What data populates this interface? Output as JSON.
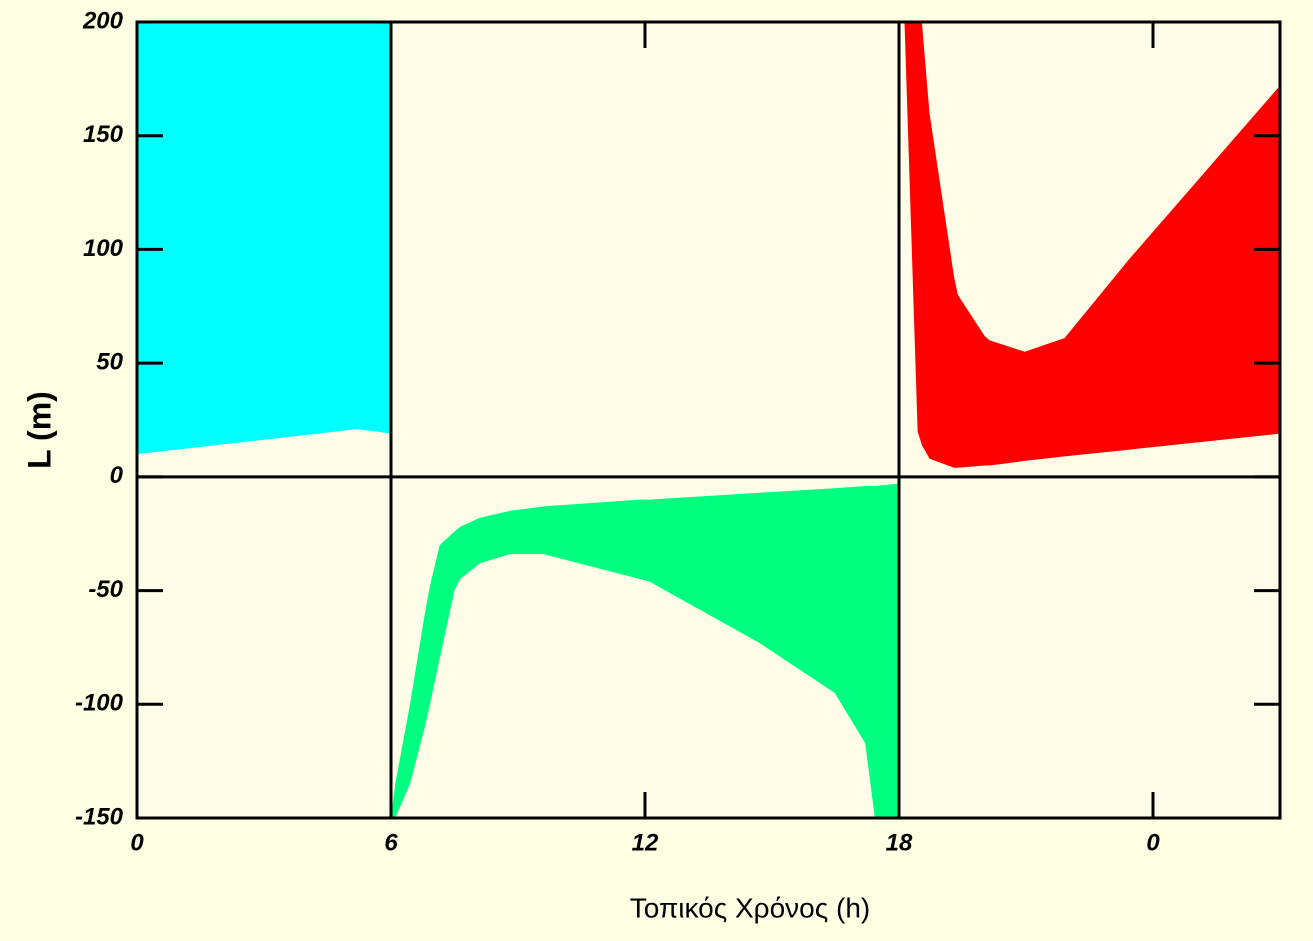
{
  "chart_data": {
    "type": "band",
    "x_label": "Τοπικός Χρόνος (h)",
    "y_label": "L (m)",
    "xlim": [
      0,
      27
    ],
    "ylim": [
      -150,
      200
    ],
    "xticks": [
      0,
      6,
      12,
      18,
      {
        "value": 24,
        "label": "0"
      }
    ],
    "yticks": [
      -150,
      -100,
      -50,
      0,
      50,
      100,
      150,
      200
    ],
    "vlines": [
      6,
      18
    ],
    "hlines": [
      0
    ],
    "series": [
      {
        "color": "#00ffff",
        "x": [
          0,
          5.2,
          6
        ],
        "lower": [
          10,
          21,
          19
        ],
        "upper": [
          200,
          200,
          200
        ]
      },
      {
        "color": "#ff0000",
        "x": [
          18.13,
          18.44,
          18.54,
          18.72,
          19.3,
          19.39,
          20.02,
          20.14,
          20.97,
          21.91,
          23.45,
          27
        ],
        "lower": [
          200,
          20,
          14,
          8,
          4,
          4,
          5,
          5,
          7,
          9,
          12,
          19
        ],
        "upper": [
          200,
          200,
          200,
          160,
          88,
          80,
          62,
          60,
          55,
          61,
          96,
          172
        ]
      },
      {
        "color": "#00ff80",
        "x": [
          6.0,
          6.1,
          6.45,
          6.8,
          6.92,
          7.15,
          7.5,
          7.63,
          8.1,
          8.8,
          9.6,
          11.9,
          12.1,
          14.7,
          16.48,
          17.2,
          17.43,
          18
        ],
        "lower": [
          -150,
          -150,
          -135,
          -110,
          -100,
          -80,
          -50,
          -45,
          -38,
          -34,
          -34,
          -45,
          -46,
          -73,
          -95,
          -117,
          -150,
          -150
        ],
        "upper": [
          -150,
          -135,
          -100,
          -60,
          -48,
          -30,
          -24,
          -22,
          -18,
          -15,
          -13,
          -10,
          -10,
          -7,
          -5,
          -4,
          -4,
          -3
        ]
      }
    ]
  }
}
